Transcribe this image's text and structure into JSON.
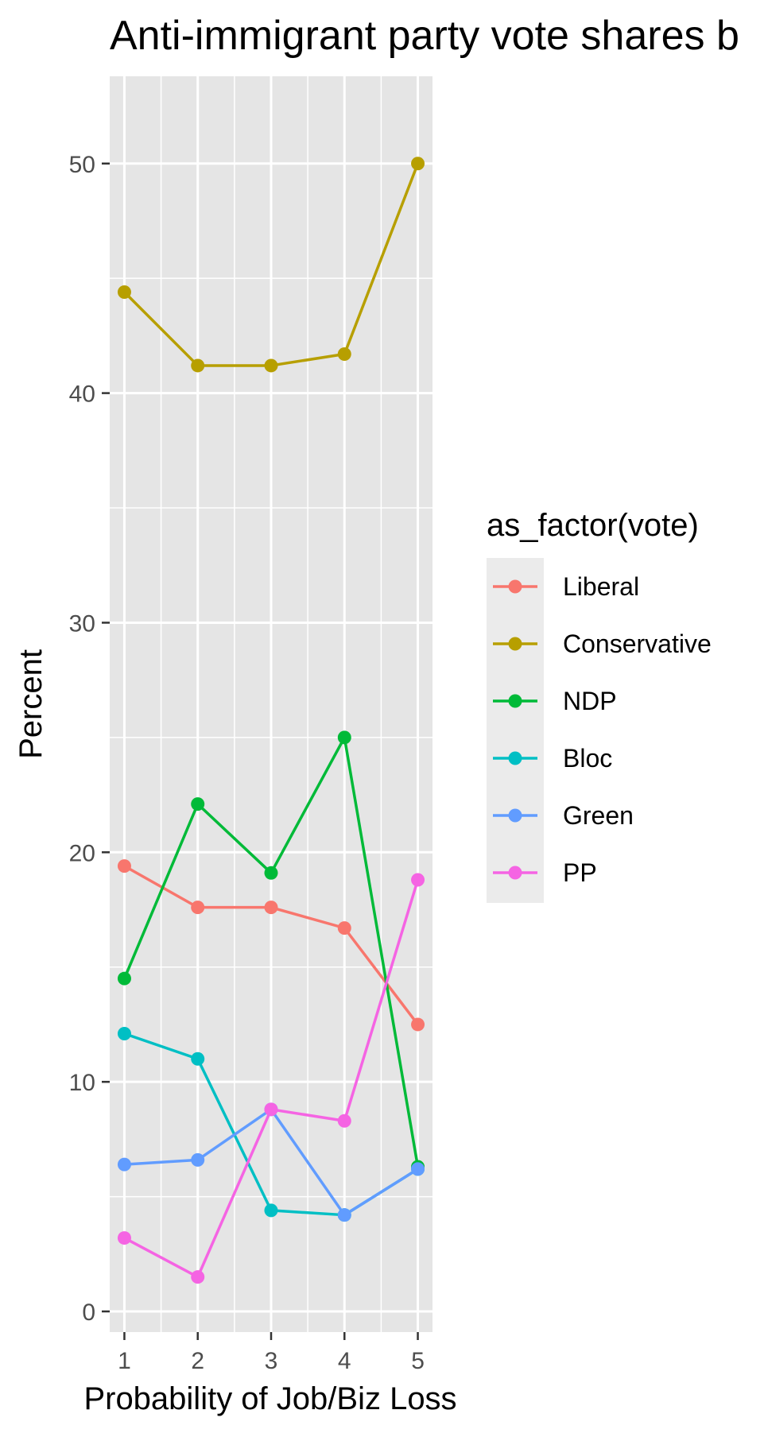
{
  "chart_data": {
    "type": "line",
    "title": "Anti-immigrant party vote shares b",
    "xlabel": "Probability of Job/Biz Loss",
    "ylabel": "Percent",
    "x": [
      1,
      2,
      3,
      4,
      5
    ],
    "xlim": [
      0.8,
      5.2
    ],
    "ylim": [
      -0.9,
      53.8
    ],
    "x_ticks": [
      "1",
      "2",
      "3",
      "4",
      "5"
    ],
    "y_ticks": [
      0,
      10,
      20,
      30,
      40,
      50
    ],
    "y_tick_labels": [
      "0",
      "10",
      "20",
      "30",
      "40",
      "50"
    ],
    "grid": true,
    "legend": {
      "title": "as_factor(vote)",
      "position": "right"
    },
    "series": [
      {
        "name": "Liberal",
        "color": "#F8766D",
        "values": [
          19.4,
          17.6,
          17.6,
          16.7,
          12.5
        ]
      },
      {
        "name": "Conservative",
        "color": "#B79F00",
        "values": [
          44.4,
          41.2,
          41.2,
          41.7,
          50.0
        ]
      },
      {
        "name": "NDP",
        "color": "#00BA38",
        "values": [
          14.5,
          22.1,
          19.1,
          25.0,
          6.3
        ]
      },
      {
        "name": "Bloc",
        "color": "#00BFC4",
        "values": [
          12.1,
          11.0,
          4.4,
          4.2,
          6.2
        ]
      },
      {
        "name": "Green",
        "color": "#619CFF",
        "values": [
          6.4,
          6.6,
          8.8,
          4.2,
          6.2
        ]
      },
      {
        "name": "PP",
        "color": "#F564E3",
        "values": [
          3.2,
          1.5,
          8.8,
          8.3,
          18.8
        ]
      }
    ]
  }
}
